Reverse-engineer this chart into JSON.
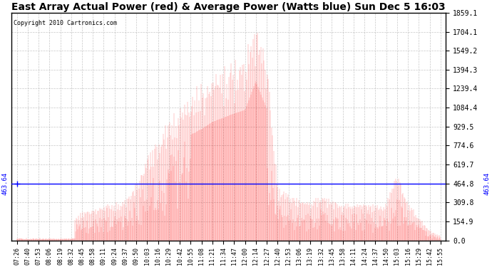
{
  "title": "East Array Actual Power (red) & Average Power (Watts blue) Sun Dec 5 16:03",
  "copyright": "Copyright 2010 Cartronics.com",
  "ymin": 0.0,
  "ymax": 1859.1,
  "yticks": [
    0.0,
    154.9,
    309.8,
    464.8,
    619.7,
    774.6,
    929.5,
    1084.4,
    1239.4,
    1394.3,
    1549.2,
    1704.1,
    1859.1
  ],
  "avg_power": 463.64,
  "avg_label": "463.64",
  "bg_color": "#ffffff",
  "fill_color": "#ff0000",
  "avg_line_color": "#0000ff",
  "grid_color": "#b0b0b0",
  "xtick_labels": [
    "07:26",
    "07:40",
    "07:53",
    "08:06",
    "08:19",
    "08:32",
    "08:45",
    "08:58",
    "09:11",
    "09:24",
    "09:37",
    "09:50",
    "10:03",
    "10:16",
    "10:29",
    "10:42",
    "10:55",
    "11:08",
    "11:21",
    "11:34",
    "11:47",
    "12:00",
    "12:14",
    "12:27",
    "12:40",
    "12:53",
    "13:06",
    "13:19",
    "13:32",
    "13:45",
    "13:58",
    "14:11",
    "14:24",
    "14:37",
    "14:50",
    "15:03",
    "15:16",
    "15:29",
    "15:42",
    "15:55"
  ],
  "power_envelope": [
    30,
    35,
    60,
    100,
    140,
    190,
    230,
    260,
    290,
    310,
    340,
    480,
    700,
    860,
    1000,
    1150,
    1230,
    1300,
    1380,
    1430,
    1480,
    1520,
    1859,
    1540,
    440,
    380,
    350,
    330,
    370,
    340,
    300,
    310,
    320,
    290,
    300,
    580,
    310,
    200,
    80,
    40
  ]
}
